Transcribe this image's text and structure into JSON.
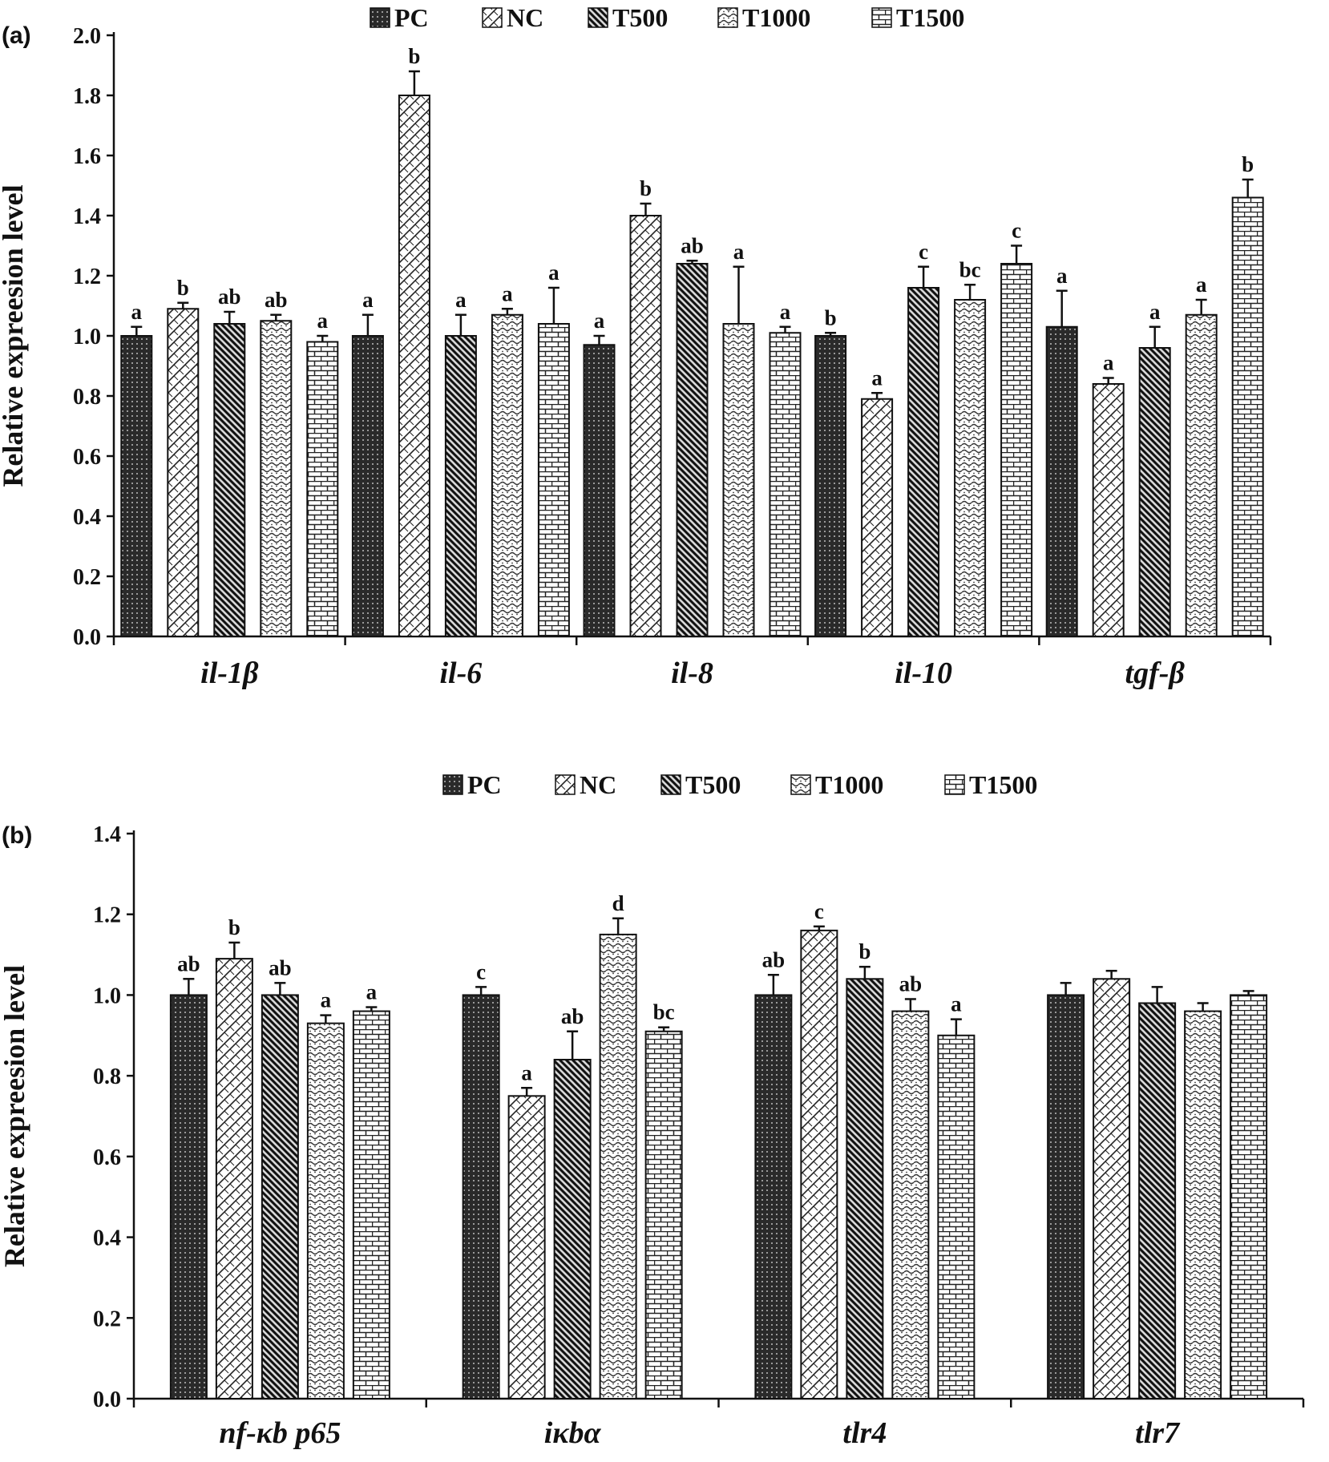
{
  "chart_data": [
    {
      "type": "bar",
      "panel_label": "(a)",
      "ylabel": "Relative expreesion level",
      "ylim": [
        0,
        2.0
      ],
      "yticks": [
        "0.0",
        "0.2",
        "0.4",
        "0.6",
        "0.8",
        "1.0",
        "1.2",
        "1.4",
        "1.6",
        "1.8",
        "2.0"
      ],
      "categories": [
        "il-1β",
        "il-6",
        "il-8",
        "il-10",
        "tgf-β"
      ],
      "legend_position": "top",
      "series": [
        {
          "name": "PC",
          "values": [
            1.0,
            1.0,
            0.97,
            1.0,
            1.03
          ],
          "errors": [
            0.03,
            0.07,
            0.03,
            0.01,
            0.12
          ],
          "labels": [
            "a",
            "a",
            "a",
            "b",
            "a"
          ]
        },
        {
          "name": "NC",
          "values": [
            1.09,
            1.8,
            1.4,
            0.79,
            0.84
          ],
          "errors": [
            0.02,
            0.08,
            0.04,
            0.02,
            0.02
          ],
          "labels": [
            "b",
            "b",
            "b",
            "a",
            "a"
          ]
        },
        {
          "name": "T500",
          "values": [
            1.04,
            1.0,
            1.24,
            1.16,
            0.96
          ],
          "errors": [
            0.04,
            0.07,
            0.01,
            0.07,
            0.07
          ],
          "labels": [
            "ab",
            "a",
            "ab",
            "c",
            "a"
          ]
        },
        {
          "name": "T1000",
          "values": [
            1.05,
            1.07,
            1.04,
            1.12,
            1.07
          ],
          "errors": [
            0.02,
            0.02,
            0.19,
            0.05,
            0.05
          ],
          "labels": [
            "ab",
            "a",
            "a",
            "bc",
            "a"
          ]
        },
        {
          "name": "T1500",
          "values": [
            0.98,
            1.04,
            1.01,
            1.24,
            1.46
          ],
          "errors": [
            0.02,
            0.12,
            0.02,
            0.06,
            0.06
          ],
          "labels": [
            "a",
            "a",
            "a",
            "c",
            "b"
          ]
        }
      ]
    },
    {
      "type": "bar",
      "panel_label": "(b)",
      "ylabel": "Relative expreesion level",
      "ylim": [
        0,
        1.4
      ],
      "yticks": [
        "0.0",
        "0.2",
        "0.4",
        "0.6",
        "0.8",
        "1.0",
        "1.2",
        "1.4"
      ],
      "categories": [
        "nf-κb p65",
        "iκbα",
        "tlr4",
        "tlr7"
      ],
      "legend_position": "top",
      "series": [
        {
          "name": "PC",
          "values": [
            1.0,
            1.0,
            1.0,
            1.0
          ],
          "errors": [
            0.04,
            0.02,
            0.05,
            0.03
          ],
          "labels": [
            "ab",
            "c",
            "ab",
            ""
          ]
        },
        {
          "name": "NC",
          "values": [
            1.09,
            0.75,
            1.16,
            1.04
          ],
          "errors": [
            0.04,
            0.02,
            0.01,
            0.02
          ],
          "labels": [
            "b",
            "a",
            "c",
            ""
          ]
        },
        {
          "name": "T500",
          "values": [
            1.0,
            0.84,
            1.04,
            0.98
          ],
          "errors": [
            0.03,
            0.07,
            0.03,
            0.04
          ],
          "labels": [
            "ab",
            "ab",
            "b",
            ""
          ]
        },
        {
          "name": "T1000",
          "values": [
            0.93,
            1.15,
            0.96,
            0.96
          ],
          "errors": [
            0.02,
            0.04,
            0.03,
            0.02
          ],
          "labels": [
            "a",
            "d",
            "ab",
            ""
          ]
        },
        {
          "name": "T1500",
          "values": [
            0.96,
            0.91,
            0.9,
            1.0
          ],
          "errors": [
            0.01,
            0.01,
            0.04,
            0.01
          ],
          "labels": [
            "a",
            "bc",
            "a",
            ""
          ]
        }
      ]
    }
  ]
}
